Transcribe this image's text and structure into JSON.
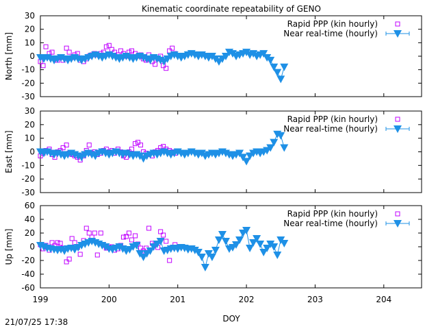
{
  "title": "Kinematic coordinate repeatability of GENO",
  "xlabel": "DOY",
  "timestamp": "21/07/25 17:38",
  "x_ticks": [
    "199",
    "200",
    "201",
    "202",
    "203",
    "204"
  ],
  "colors": {
    "rapid": "#c000ff",
    "nrt": "#1e90e6"
  },
  "chart_data": [
    {
      "type": "scatter",
      "ylabel": "North [mm]",
      "xlim": [
        199,
        204.55
      ],
      "ylim": [
        -30,
        30
      ],
      "y_ticks": [
        "30",
        "20",
        "10",
        "0",
        "-10",
        "-20",
        "-30"
      ],
      "legend_position": "top-right",
      "series": [
        {
          "name": "Rapid PPP (kin hourly)",
          "marker": "open-square",
          "x": [
            199.0,
            199.04,
            199.08,
            199.13,
            199.17,
            199.21,
            199.25,
            199.29,
            199.33,
            199.38,
            199.42,
            199.46,
            199.5,
            199.54,
            199.58,
            199.63,
            199.67,
            199.71,
            199.75,
            199.79,
            199.83,
            199.88,
            199.92,
            199.96,
            200.0,
            200.04,
            200.08,
            200.13,
            200.17,
            200.21,
            200.25,
            200.29,
            200.33,
            200.38,
            200.42,
            200.46,
            200.5,
            200.54,
            200.58,
            200.63,
            200.67,
            200.71,
            200.75,
            200.79,
            200.83,
            200.88,
            200.92,
            200.96
          ],
          "y": [
            -4,
            -7,
            7,
            2,
            3,
            -2,
            -3,
            -1,
            -3,
            6,
            3,
            -1,
            1,
            2,
            -3,
            -4,
            -2,
            0,
            1,
            2,
            1,
            2,
            3,
            7,
            8,
            5,
            3,
            1,
            4,
            2,
            0,
            3,
            4,
            2,
            0,
            1,
            -2,
            -3,
            1,
            -4,
            -6,
            -2,
            0,
            -7,
            -9,
            4,
            6,
            2
          ]
        },
        {
          "name": "Near real-time (hourly)",
          "marker": "filled-triangle-down",
          "x": [
            199.0,
            199.05,
            199.1,
            199.15,
            199.2,
            199.25,
            199.3,
            199.35,
            199.4,
            199.45,
            199.5,
            199.55,
            199.6,
            199.65,
            199.7,
            199.75,
            199.8,
            199.85,
            199.9,
            199.95,
            200.0,
            200.05,
            200.1,
            200.15,
            200.2,
            200.25,
            200.3,
            200.35,
            200.4,
            200.45,
            200.5,
            200.55,
            200.6,
            200.65,
            200.7,
            200.75,
            200.8,
            200.85,
            200.9,
            200.95,
            201.0,
            201.05,
            201.1,
            201.15,
            201.2,
            201.25,
            201.3,
            201.35,
            201.4,
            201.45,
            201.5,
            201.55,
            201.6,
            201.65,
            201.7,
            201.75,
            201.8,
            201.85,
            201.9,
            201.95,
            202.0,
            202.05,
            202.1,
            202.15,
            202.2,
            202.25,
            202.3,
            202.35,
            202.4,
            202.45,
            202.5,
            202.55
          ],
          "y": [
            -1,
            -2,
            -1,
            -2,
            -3,
            -2,
            -1,
            -2,
            -3,
            -2,
            -1,
            -2,
            -3,
            -2,
            -1,
            0,
            1,
            0,
            -1,
            0,
            1,
            0,
            -1,
            -2,
            -1,
            0,
            -1,
            -2,
            -1,
            0,
            -1,
            -2,
            -3,
            -1,
            -2,
            -3,
            -4,
            -2,
            0,
            1,
            0,
            -1,
            0,
            1,
            2,
            1,
            0,
            1,
            0,
            -1,
            0,
            -2,
            -4,
            -2,
            0,
            3,
            2,
            0,
            1,
            2,
            3,
            1,
            2,
            0,
            1,
            2,
            -1,
            -3,
            -8,
            -12,
            -17,
            -8
          ]
        }
      ]
    },
    {
      "type": "scatter",
      "ylabel": "East [mm]",
      "xlim": [
        199,
        204.55
      ],
      "ylim": [
        -30,
        30
      ],
      "y_ticks": [
        "30",
        "20",
        "10",
        "0",
        "-10",
        "-20",
        "-30"
      ],
      "legend_position": "top-right",
      "series": [
        {
          "name": "Rapid PPP (kin hourly)",
          "marker": "open-square",
          "x": [
            199.0,
            199.04,
            199.08,
            199.13,
            199.17,
            199.21,
            199.25,
            199.29,
            199.33,
            199.38,
            199.42,
            199.46,
            199.5,
            199.54,
            199.58,
            199.63,
            199.67,
            199.71,
            199.75,
            199.79,
            199.83,
            199.88,
            199.92,
            199.96,
            200.0,
            200.04,
            200.08,
            200.13,
            200.17,
            200.21,
            200.25,
            200.29,
            200.33,
            200.38,
            200.42,
            200.46,
            200.5,
            200.54,
            200.58,
            200.63,
            200.67,
            200.71,
            200.75,
            200.79,
            200.83,
            200.88,
            200.92,
            200.96
          ],
          "y": [
            -3,
            -1,
            1,
            2,
            -2,
            -4,
            0,
            1,
            3,
            5,
            -1,
            -2,
            -3,
            -4,
            -6,
            -3,
            1,
            5,
            -1,
            0,
            -2,
            -1,
            1,
            2,
            0,
            1,
            -1,
            2,
            0,
            -3,
            -4,
            0,
            2,
            6,
            7,
            5,
            0,
            -1,
            -2,
            -3,
            0,
            1,
            3,
            4,
            2,
            1,
            0,
            -1
          ]
        },
        {
          "name": "Near real-time (hourly)",
          "marker": "filled-triangle-down",
          "x": [
            199.0,
            199.05,
            199.1,
            199.15,
            199.2,
            199.25,
            199.3,
            199.35,
            199.4,
            199.45,
            199.5,
            199.55,
            199.6,
            199.65,
            199.7,
            199.75,
            199.8,
            199.85,
            199.9,
            199.95,
            200.0,
            200.05,
            200.1,
            200.15,
            200.2,
            200.25,
            200.3,
            200.35,
            200.4,
            200.45,
            200.5,
            200.55,
            200.6,
            200.65,
            200.7,
            200.75,
            200.8,
            200.85,
            200.9,
            200.95,
            201.0,
            201.05,
            201.1,
            201.15,
            201.2,
            201.25,
            201.3,
            201.35,
            201.4,
            201.45,
            201.5,
            201.55,
            201.6,
            201.65,
            201.7,
            201.75,
            201.8,
            201.85,
            201.9,
            201.95,
            202.0,
            202.05,
            202.1,
            202.15,
            202.2,
            202.25,
            202.3,
            202.35,
            202.4,
            202.45,
            202.5,
            202.55
          ],
          "y": [
            0,
            -1,
            0,
            -1,
            -2,
            -1,
            -2,
            -3,
            -2,
            -1,
            -2,
            -3,
            -4,
            -2,
            -1,
            -2,
            -3,
            -1,
            0,
            -1,
            -2,
            -1,
            0,
            -1,
            -2,
            -1,
            -2,
            -3,
            -2,
            -3,
            -5,
            -3,
            -2,
            -1,
            -2,
            -1,
            0,
            -1,
            -2,
            -1,
            0,
            -1,
            -2,
            -1,
            0,
            -1,
            -2,
            -1,
            -3,
            -2,
            -1,
            -2,
            -1,
            0,
            -1,
            -2,
            -3,
            -2,
            -1,
            -4,
            -7,
            -3,
            -1,
            0,
            -1,
            0,
            1,
            3,
            7,
            13,
            12,
            3
          ]
        }
      ]
    },
    {
      "type": "scatter",
      "ylabel": "Up [mm]",
      "xlim": [
        199,
        204.55
      ],
      "ylim": [
        -60,
        60
      ],
      "y_ticks": [
        "60",
        "40",
        "20",
        "0",
        "-20",
        "-40",
        "-60"
      ],
      "legend_position": "top-right",
      "series": [
        {
          "name": "Rapid PPP (kin hourly)",
          "marker": "open-square",
          "x": [
            199.0,
            199.04,
            199.08,
            199.13,
            199.17,
            199.21,
            199.25,
            199.29,
            199.33,
            199.38,
            199.42,
            199.46,
            199.5,
            199.54,
            199.58,
            199.63,
            199.67,
            199.71,
            199.75,
            199.79,
            199.83,
            199.88,
            199.92,
            199.96,
            200.0,
            200.04,
            200.08,
            200.13,
            200.17,
            200.21,
            200.25,
            200.29,
            200.33,
            200.38,
            200.42,
            200.46,
            200.5,
            200.54,
            200.58,
            200.63,
            200.67,
            200.71,
            200.75,
            200.79,
            200.83,
            200.88,
            200.92,
            200.96
          ],
          "y": [
            3,
            -3,
            2,
            -5,
            6,
            2,
            6,
            5,
            -2,
            -22,
            -18,
            12,
            6,
            -1,
            -11,
            9,
            27,
            20,
            14,
            20,
            -12,
            20,
            2,
            -2,
            -1,
            0,
            -5,
            -3,
            2,
            14,
            15,
            20,
            10,
            16,
            4,
            -2,
            -6,
            -2,
            27,
            5,
            3,
            -1,
            22,
            17,
            8,
            -20,
            -1,
            3
          ]
        },
        {
          "name": "Near real-time (hourly)",
          "marker": "filled-triangle-down",
          "x": [
            199.0,
            199.05,
            199.1,
            199.15,
            199.2,
            199.25,
            199.3,
            199.35,
            199.4,
            199.45,
            199.5,
            199.55,
            199.6,
            199.65,
            199.7,
            199.75,
            199.8,
            199.85,
            199.9,
            199.95,
            200.0,
            200.05,
            200.1,
            200.15,
            200.2,
            200.25,
            200.3,
            200.35,
            200.4,
            200.45,
            200.5,
            200.55,
            200.6,
            200.65,
            200.7,
            200.75,
            200.8,
            200.85,
            200.9,
            200.95,
            201.0,
            201.05,
            201.1,
            201.15,
            201.2,
            201.25,
            201.3,
            201.35,
            201.4,
            201.45,
            201.5,
            201.55,
            201.6,
            201.65,
            201.7,
            201.75,
            201.8,
            201.85,
            201.9,
            201.95,
            202.0,
            202.05,
            202.1,
            202.15,
            202.2,
            202.25,
            202.3,
            202.35,
            202.4,
            202.45,
            202.5,
            202.55
          ],
          "y": [
            2,
            0,
            -2,
            -3,
            -4,
            -5,
            -4,
            -6,
            -3,
            -2,
            -4,
            -1,
            2,
            4,
            6,
            8,
            6,
            4,
            2,
            0,
            -3,
            -4,
            -2,
            0,
            -3,
            -6,
            -4,
            0,
            2,
            -10,
            -15,
            -10,
            -6,
            0,
            4,
            8,
            -6,
            -5,
            -3,
            -2,
            -3,
            -1,
            -2,
            -4,
            -3,
            -5,
            -8,
            -15,
            -30,
            -10,
            -15,
            -5,
            10,
            18,
            8,
            -3,
            -1,
            3,
            10,
            20,
            24,
            -2,
            6,
            12,
            4,
            -8,
            -2,
            4,
            0,
            -12,
            10,
            5
          ]
        }
      ]
    }
  ]
}
